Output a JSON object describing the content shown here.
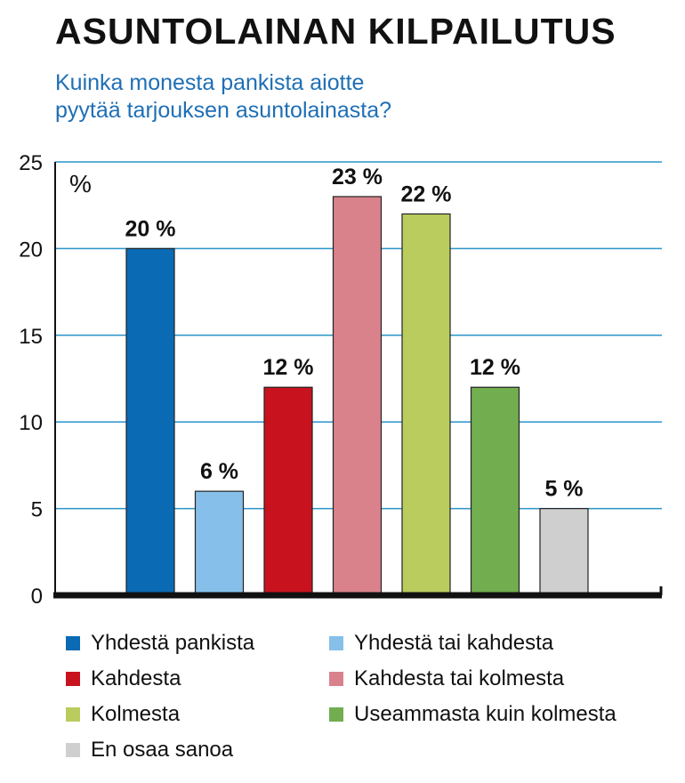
{
  "title": "ASUNTOLAINAN KILPAILUTUS",
  "subtitle": [
    "Kuinka monesta pankista aiotte",
    "pyytää tarjouksen asuntolainasta?"
  ],
  "unit_label": "%",
  "chart_data": {
    "type": "bar",
    "title": "ASUNTOLAINAN KILPAILUTUS",
    "subtitle": "Kuinka monesta pankista aiotte pyytää tarjouksen asuntolainasta?",
    "ylabel": "%",
    "ylim": [
      0,
      25
    ],
    "yticks": [
      0,
      5,
      10,
      15,
      20,
      25
    ],
    "grid": true,
    "legend_position": "bottom",
    "categories": [
      "Yhdestä pankista",
      "Yhdestä tai kahdesta",
      "Kahdesta",
      "Kahdesta tai kolmesta",
      "Kolmesta",
      "Useammasta kuin kolmesta",
      "En osaa sanoa"
    ],
    "values": [
      20,
      6,
      12,
      23,
      22,
      12,
      5
    ],
    "value_labels": [
      "20 %",
      "6 %",
      "12 %",
      "23 %",
      "22 %",
      "12 %",
      "5 %"
    ],
    "colors": [
      "#0a6ab4",
      "#86c0ea",
      "#c8131f",
      "#d9828c",
      "#bacc5e",
      "#72ad4f",
      "#cfcfcf"
    ]
  },
  "colors": {
    "gridline": "#2a95c9",
    "axis": "#111111",
    "title": "#111111",
    "subtitle": "#1f6fb5",
    "bar_outline": "#222222"
  }
}
